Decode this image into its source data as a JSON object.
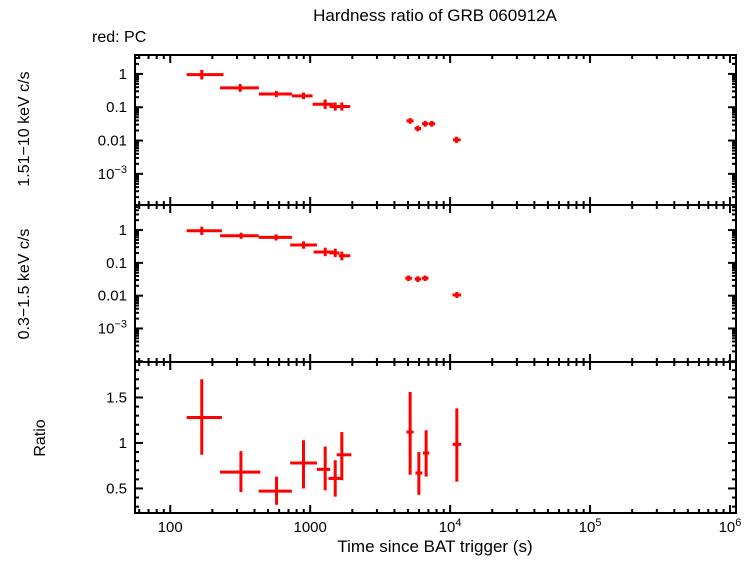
{
  "chart_data": {
    "type": "scatter",
    "title": "Hardness ratio of GRB 060912A",
    "annotation": "red: PC",
    "xlabel": "Time since BAT trigger (s)",
    "point_color": "#ff0000",
    "frame_color": "#000000",
    "background": "#ffffff",
    "marker": "cross-with-error-bars",
    "legend_position": "top-left",
    "grid": false,
    "xaxis": {
      "scale": "log",
      "min": 56,
      "max": 1104000,
      "ticks": [
        100,
        1000,
        10000,
        100000,
        1000000
      ],
      "tick_labels": [
        "100",
        "1000",
        "10^4",
        "10^5",
        "10^6"
      ]
    },
    "panels": [
      {
        "name": "hard-band",
        "ylabel": "1.51−10 keV c/s",
        "yscale": "log",
        "ymin": 0.000116,
        "ymax": 3.7,
        "yticks": [
          1,
          0.1,
          0.01,
          0.001
        ],
        "ytick_labels": [
          "1",
          "0.1",
          "0.01",
          "10^−3"
        ],
        "points": [
          {
            "t": 168,
            "tlo": 131,
            "thi": 240,
            "v": 0.95,
            "vlo": 0.68,
            "vhi": 1.33
          },
          {
            "t": 316,
            "tlo": 227,
            "thi": 430,
            "v": 0.38,
            "vlo": 0.29,
            "vhi": 0.5
          },
          {
            "t": 573,
            "tlo": 430,
            "thi": 740,
            "v": 0.25,
            "vlo": 0.2,
            "vhi": 0.31
          },
          {
            "t": 896,
            "tlo": 740,
            "thi": 1040,
            "v": 0.22,
            "vlo": 0.175,
            "vhi": 0.275
          },
          {
            "t": 1280,
            "tlo": 1040,
            "thi": 1469,
            "v": 0.123,
            "vlo": 0.089,
            "vhi": 0.17
          },
          {
            "t": 1510,
            "tlo": 1375,
            "thi": 1620,
            "v": 0.105,
            "vlo": 0.079,
            "vhi": 0.139
          },
          {
            "t": 1683,
            "tlo": 1600,
            "thi": 1935,
            "v": 0.105,
            "vlo": 0.079,
            "vhi": 0.139
          },
          {
            "t": 5180,
            "tlo": 4880,
            "thi": 5480,
            "v": 0.039,
            "vlo": 0.032,
            "vhi": 0.047
          },
          {
            "t": 5880,
            "tlo": 5580,
            "thi": 6200,
            "v": 0.023,
            "vlo": 0.019,
            "vhi": 0.028
          },
          {
            "t": 6630,
            "tlo": 6300,
            "thi": 7000,
            "v": 0.032,
            "vlo": 0.026,
            "vhi": 0.039
          },
          {
            "t": 7400,
            "tlo": 7050,
            "thi": 7800,
            "v": 0.032,
            "vlo": 0.026,
            "vhi": 0.039
          },
          {
            "t": 11100,
            "tlo": 10500,
            "thi": 11900,
            "v": 0.0105,
            "vlo": 0.0085,
            "vhi": 0.013
          }
        ]
      },
      {
        "name": "soft-band",
        "ylabel": "0.3−1.5 keV c/s",
        "yscale": "log",
        "ymin": 9.5e-05,
        "ymax": 5.8,
        "yticks": [
          1,
          0.1,
          0.01,
          0.001
        ],
        "ytick_labels": [
          "1",
          "0.1",
          "0.01",
          "10^−3"
        ],
        "points": [
          {
            "t": 168,
            "tlo": 131,
            "thi": 234,
            "v": 0.95,
            "vlo": 0.71,
            "vhi": 1.27
          },
          {
            "t": 321,
            "tlo": 227,
            "thi": 428,
            "v": 0.67,
            "vlo": 0.54,
            "vhi": 0.83
          },
          {
            "t": 571,
            "tlo": 428,
            "thi": 740,
            "v": 0.6,
            "vlo": 0.48,
            "vhi": 0.74
          },
          {
            "t": 896,
            "tlo": 720,
            "thi": 1117,
            "v": 0.35,
            "vlo": 0.27,
            "vhi": 0.45
          },
          {
            "t": 1280,
            "tlo": 1057,
            "thi": 1469,
            "v": 0.215,
            "vlo": 0.16,
            "vhi": 0.29
          },
          {
            "t": 1510,
            "tlo": 1375,
            "thi": 1620,
            "v": 0.2,
            "vlo": 0.15,
            "vhi": 0.27
          },
          {
            "t": 1683,
            "tlo": 1600,
            "thi": 1935,
            "v": 0.165,
            "vlo": 0.12,
            "vhi": 0.22
          },
          {
            "t": 5040,
            "tlo": 4780,
            "thi": 5350,
            "v": 0.034,
            "vlo": 0.028,
            "vhi": 0.041
          },
          {
            "t": 5880,
            "tlo": 5580,
            "thi": 6200,
            "v": 0.032,
            "vlo": 0.026,
            "vhi": 0.039
          },
          {
            "t": 6630,
            "tlo": 6300,
            "thi": 7000,
            "v": 0.034,
            "vlo": 0.028,
            "vhi": 0.041
          },
          {
            "t": 11170,
            "tlo": 10400,
            "thi": 12000,
            "v": 0.0105,
            "vlo": 0.0085,
            "vhi": 0.013
          }
        ]
      },
      {
        "name": "ratio",
        "ylabel": "Ratio",
        "yscale": "linear",
        "ymin": 0.23,
        "ymax": 1.89,
        "yticks": [
          0.5,
          1,
          1.5
        ],
        "ytick_labels": [
          "0.5",
          "1",
          "1.5"
        ],
        "points": [
          {
            "t": 168,
            "tlo": 131,
            "thi": 234,
            "v": 1.28,
            "vlo": 0.87,
            "vhi": 1.7
          },
          {
            "t": 320,
            "tlo": 227,
            "thi": 440,
            "v": 0.68,
            "vlo": 0.46,
            "vhi": 0.91
          },
          {
            "t": 575,
            "tlo": 428,
            "thi": 740,
            "v": 0.47,
            "vlo": 0.32,
            "vhi": 0.63
          },
          {
            "t": 896,
            "tlo": 720,
            "thi": 1117,
            "v": 0.78,
            "vlo": 0.5,
            "vhi": 1.03
          },
          {
            "t": 1280,
            "tlo": 1117,
            "thi": 1390,
            "v": 0.71,
            "vlo": 0.48,
            "vhi": 0.96
          },
          {
            "t": 1510,
            "tlo": 1352,
            "thi": 1690,
            "v": 0.61,
            "vlo": 0.41,
            "vhi": 0.81
          },
          {
            "t": 1683,
            "tlo": 1548,
            "thi": 1970,
            "v": 0.87,
            "vlo": 0.59,
            "vhi": 1.12
          },
          {
            "t": 5180,
            "tlo": 4880,
            "thi": 5480,
            "v": 1.12,
            "vlo": 0.65,
            "vhi": 1.56
          },
          {
            "t": 5980,
            "tlo": 5650,
            "thi": 6330,
            "v": 0.67,
            "vlo": 0.43,
            "vhi": 0.9
          },
          {
            "t": 6740,
            "tlo": 6400,
            "thi": 7100,
            "v": 0.89,
            "vlo": 0.63,
            "vhi": 1.14
          },
          {
            "t": 11170,
            "tlo": 10400,
            "thi": 12000,
            "v": 0.985,
            "vlo": 0.575,
            "vhi": 1.38
          }
        ]
      }
    ]
  }
}
